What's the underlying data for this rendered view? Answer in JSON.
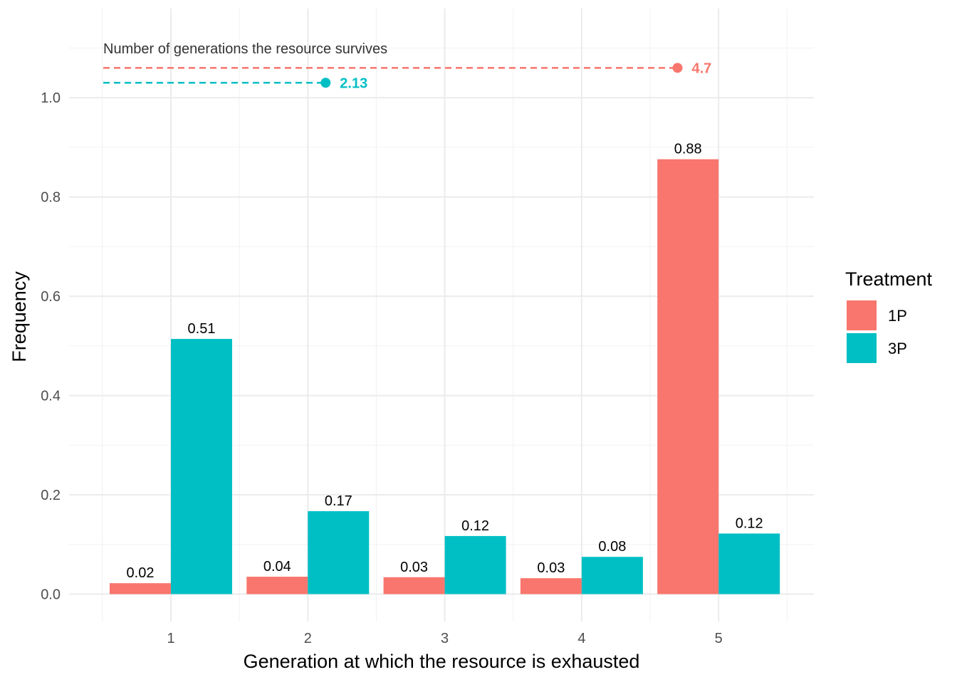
{
  "chart_data": {
    "type": "bar",
    "xlabel": "Generation at which the resource is exhausted",
    "ylabel": "Frequency",
    "categories": [
      "1",
      "2",
      "3",
      "4",
      "5"
    ],
    "ylim": [
      -0.05,
      1.1
    ],
    "yticks": [
      0.0,
      0.2,
      0.4,
      0.6,
      0.8,
      1.0
    ],
    "ytick_labels": [
      "0.0",
      "0.2",
      "0.4",
      "0.6",
      "0.8",
      "1.0"
    ],
    "grid": true,
    "legend": {
      "title": "Treatment",
      "position": "right"
    },
    "series": [
      {
        "name": "1P",
        "color": "#F8766D",
        "values": [
          0.022,
          0.035,
          0.034,
          0.032,
          0.876
        ],
        "labels": [
          "0.02",
          "0.04",
          "0.03",
          "0.03",
          "0.88"
        ]
      },
      {
        "name": "3P",
        "color": "#00BFC4",
        "values": [
          0.514,
          0.167,
          0.117,
          0.075,
          0.122
        ],
        "labels": [
          "0.51",
          "0.17",
          "0.12",
          "0.08",
          "0.12"
        ]
      }
    ],
    "annotation": {
      "text": "Number of generations the resource survives",
      "segments": [
        {
          "series": "1P",
          "x_start": 0.5,
          "x_end": 4.7,
          "y": 1.06,
          "label": "4.7"
        },
        {
          "series": "3P",
          "x_start": 0.5,
          "x_end": 2.13,
          "y": 1.03,
          "label": "2.13"
        }
      ]
    }
  }
}
